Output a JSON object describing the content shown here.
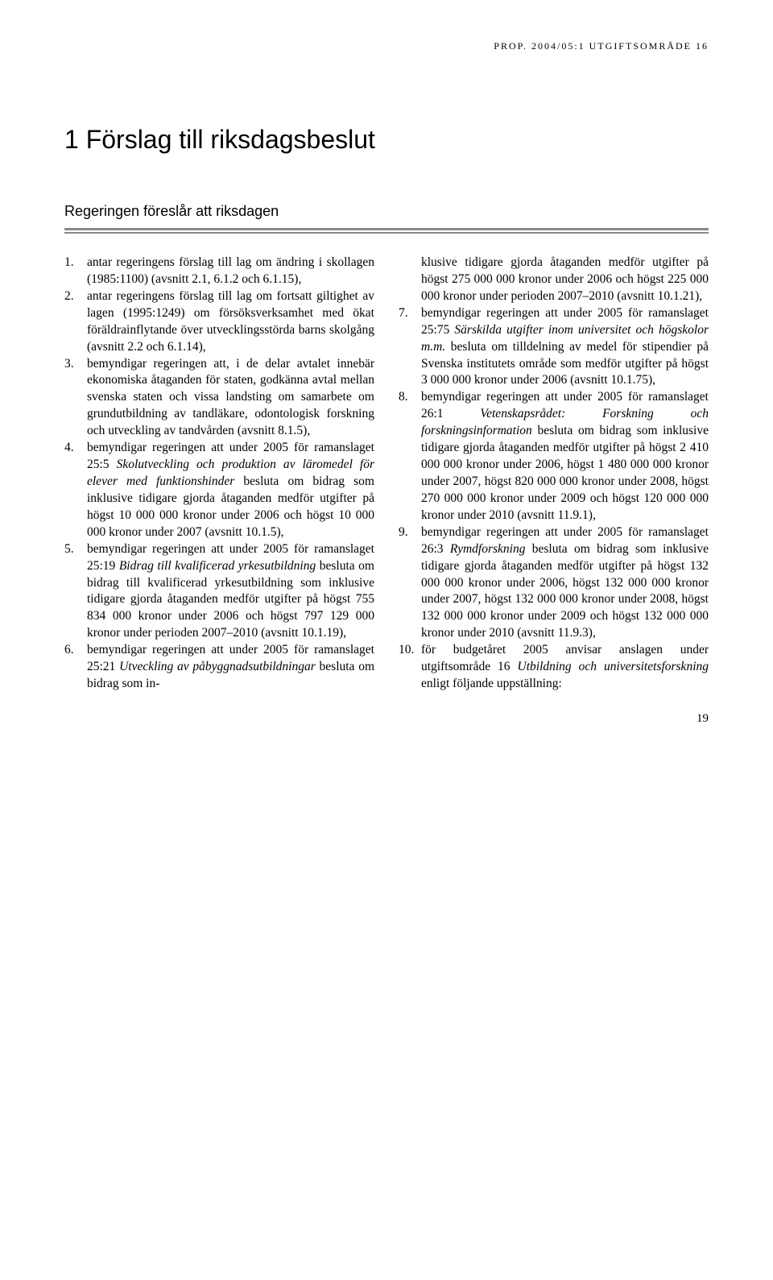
{
  "header": "PROP. 2004/05:1 UTGIFTSOMRÅDE 16",
  "section_number_title": "1 Förslag till riksdagsbeslut",
  "subtitle": "Regeringen föreslår att riksdagen",
  "left_items": [
    {
      "n": "1.",
      "body": "antar regeringens förslag till lag om ändring i skollagen (1985:1100) (avsnitt 2.1, 6.1.2 och 6.1.15),"
    },
    {
      "n": "2.",
      "body": "antar regeringens förslag till lag om fortsatt giltighet av lagen (1995:1249) om försöksverksamhet med ökat föräldrainflytande över utvecklingsstörda barns skolgång (avsnitt 2.2 och 6.1.14),"
    },
    {
      "n": "3.",
      "body": "bemyndigar regeringen att, i de delar avtalet innebär ekonomiska åtaganden för staten, godkänna avtal mellan svenska staten och vissa landsting om samarbete om grundutbildning av tandläkare, odontologisk forskning och utveckling av tandvården (avsnitt 8.1.5),"
    },
    {
      "n": "4.",
      "body_pre": "bemyndigar regeringen att under 2005 för ramanslaget 25:5 ",
      "body_italic": "Skolutveckling och produktion av läromedel för elever med funktionshinder",
      "body_post": " besluta om bidrag som inklusive tidigare gjorda åtaganden medför utgifter på högst 10 000 000 kronor under 2006 och högst 10 000 000 kronor under 2007 (avsnitt 10.1.5),"
    },
    {
      "n": "5.",
      "body_pre": "bemyndigar regeringen att under 2005 för ramanslaget 25:19 ",
      "body_italic": "Bidrag till kvalificerad yrkesutbildning",
      "body_post": " besluta om bidrag till kvalificerad yrkesutbildning som inklusive tidigare gjorda åtaganden medför utgifter på högst 755 834 000 kronor under 2006 och högst 797 129 000 kronor under perioden 2007–2010 (avsnitt 10.1.19),"
    },
    {
      "n": "6.",
      "body_pre": "bemyndigar regeringen att under 2005 för ramanslaget 25:21 ",
      "body_italic": "Utveckling av påbyggnadsutbildningar",
      "body_post": " besluta om bidrag som in-"
    }
  ],
  "right_continuation": "klusive tidigare gjorda åtaganden medför utgifter på högst 275 000 000 kronor under 2006 och högst 225 000 000 kronor under perioden 2007–2010 (avsnitt 10.1.21),",
  "right_items": [
    {
      "n": "7.",
      "body_pre": "bemyndigar regeringen att under 2005 för ramanslaget 25:75 ",
      "body_italic": "Särskilda utgifter inom universitet och högskolor m.m.",
      "body_post": " besluta om tilldelning av medel för stipendier på Svenska institutets område som medför utgifter på högst 3 000 000 kronor under 2006 (avsnitt 10.1.75),"
    },
    {
      "n": "8.",
      "body_pre": "bemyndigar regeringen att under 2005 för ramanslaget 26:1 ",
      "body_italic": "Vetenskapsrådet: Forskning och forskningsinformation",
      "body_post": " besluta om bidrag som inklusive tidigare gjorda åtaganden medför utgifter på högst 2 410 000 000 kronor under 2006, högst 1 480 000 000 kronor under 2007, högst 820 000 000 kronor under 2008, högst 270 000 000 kronor under 2009 och högst 120 000 000 kronor under 2010 (avsnitt 11.9.1),"
    },
    {
      "n": "9.",
      "body_pre": "bemyndigar regeringen att under 2005 för ramanslaget 26:3 ",
      "body_italic": "Rymdforskning",
      "body_post": " besluta om bidrag som inklusive tidigare gjorda åtaganden medför utgifter på högst 132 000 000 kronor under 2006, högst 132 000 000 kronor under 2007, högst 132 000 000 kronor under 2008, högst 132 000 000 kronor under 2009 och högst 132 000 000 kronor under 2010 (avsnitt 11.9.3),"
    },
    {
      "n": "10.",
      "body_pre": "för budgetåret 2005 anvisar anslagen under utgiftsområde 16 ",
      "body_italic": "Utbildning och universitetsforskning",
      "body_post": " enligt följande uppställning:"
    }
  ],
  "page_number": "19",
  "colors": {
    "rule": "#898989",
    "text": "#000000",
    "background": "#ffffff"
  }
}
